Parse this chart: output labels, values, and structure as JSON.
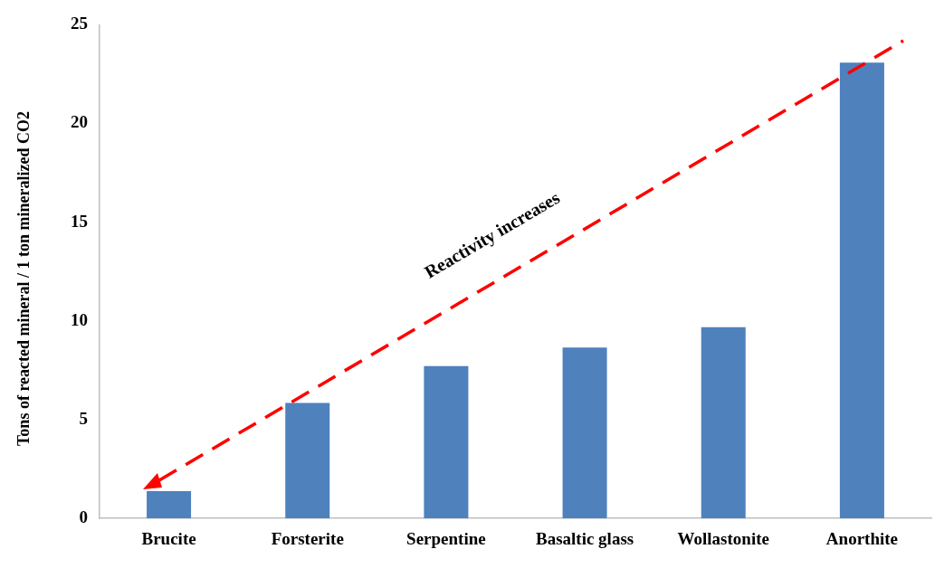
{
  "chart_data": {
    "type": "bar",
    "ylabel": "Tons of reacted mineral / 1 ton mineralized CO2",
    "categories": [
      "Brucite",
      "Forsterite",
      "Serpentine",
      "Basaltic glass",
      "Wollastonite",
      "Anorthite"
    ],
    "values": [
      1.38,
      5.85,
      7.72,
      8.66,
      9.69,
      23.08
    ],
    "color": "#4f81bd",
    "ylim": [
      0,
      25
    ],
    "yticks": [
      0,
      5,
      10,
      15,
      20,
      25
    ],
    "grid": false,
    "legend": false,
    "annotations": [
      "Reactivity increases"
    ]
  }
}
